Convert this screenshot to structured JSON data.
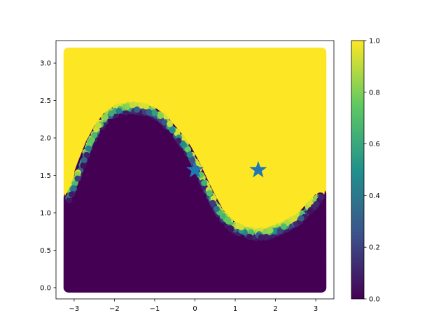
{
  "chart_data": {
    "type": "scatter",
    "title": "",
    "xlabel": "",
    "ylabel": "",
    "xlim": [
      -3.45,
      3.45
    ],
    "ylim": [
      -0.15,
      3.3
    ],
    "x_ticks": [
      -3,
      -2,
      -1,
      0,
      1,
      2,
      3
    ],
    "x_tick_labels": [
      "−3",
      "−2",
      "−1",
      "0",
      "1",
      "2",
      "3"
    ],
    "y_ticks": [
      0.0,
      0.5,
      1.0,
      1.5,
      2.0,
      2.5,
      3.0
    ],
    "y_tick_labels": [
      "0.0",
      "0.5",
      "1.0",
      "1.5",
      "2.0",
      "2.5",
      "3.0"
    ],
    "grid": false,
    "colormap": "viridis",
    "colormap_stops": [
      "#440154",
      "#3b528b",
      "#21918c",
      "#5ec962",
      "#fde725"
    ],
    "field_colors": {
      "low": "#440154",
      "high": "#fde725"
    },
    "point_domain": {
      "x": [
        -3.14159,
        3.14159
      ],
      "y": [
        0,
        3.14159
      ]
    },
    "decision_boundary": {
      "description": "points below boundary have value 0, above have value 1",
      "x": [
        -3.14,
        -3.0,
        -2.8,
        -2.6,
        -2.4,
        -2.2,
        -2.0,
        -1.8,
        -1.6,
        -1.4,
        -1.2,
        -1.0,
        -0.8,
        -0.6,
        -0.4,
        -0.2,
        0.0,
        0.2,
        0.4,
        0.6,
        0.8,
        1.0,
        1.2,
        1.4,
        1.6,
        1.8,
        2.0,
        2.2,
        2.4,
        2.6,
        2.8,
        3.0,
        3.14
      ],
      "y": [
        1.2,
        1.35,
        1.65,
        1.92,
        2.12,
        2.27,
        2.35,
        2.38,
        2.4,
        2.39,
        2.37,
        2.33,
        2.25,
        2.13,
        2.0,
        1.85,
        1.65,
        1.42,
        1.2,
        1.0,
        0.88,
        0.79,
        0.75,
        0.72,
        0.71,
        0.72,
        0.76,
        0.8,
        0.86,
        0.92,
        1.04,
        1.14,
        1.25
      ]
    },
    "markers": [
      {
        "x": 0.0,
        "y": 1.5708,
        "symbol": "star",
        "color": "#1f77b4"
      },
      {
        "x": 1.5708,
        "y": 1.5708,
        "symbol": "star",
        "color": "#1f77b4"
      }
    ],
    "colorbar": {
      "range": [
        0.0,
        1.0
      ],
      "ticks": [
        0.0,
        0.2,
        0.4,
        0.6,
        0.8,
        1.0
      ],
      "tick_labels": [
        "0.0",
        "0.2",
        "0.4",
        "0.6",
        "0.8",
        "1.0"
      ]
    }
  }
}
